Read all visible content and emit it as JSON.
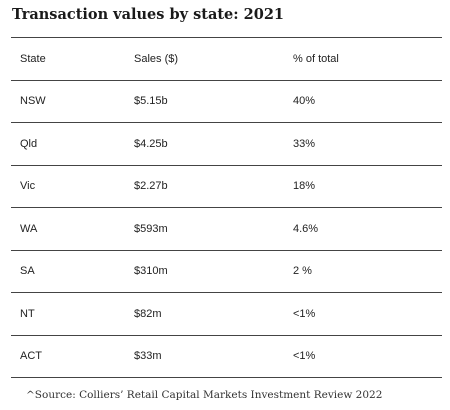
{
  "title": "Transaction values by state: 2021",
  "table": {
    "headers": [
      "State",
      "Sales ($)",
      "% of total"
    ],
    "rows": [
      [
        "NSW",
        "$5.15b",
        "40%"
      ],
      [
        "Qld",
        "$4.25b",
        "33%"
      ],
      [
        "Vic",
        "$2.27b",
        "18%"
      ],
      [
        "WA",
        "$593m",
        "4.6%"
      ],
      [
        "SA",
        "$310m",
        "2 %"
      ],
      [
        "NT",
        "$82m",
        "<1%"
      ],
      [
        "ACT",
        "$33m",
        "<1%"
      ]
    ]
  },
  "source": "^Source: Colliers’ Retail Capital Markets Investment Review 2022"
}
